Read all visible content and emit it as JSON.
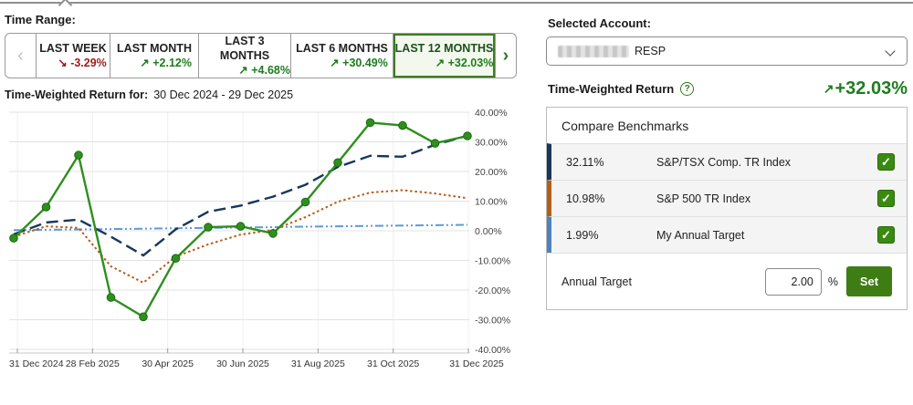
{
  "time_range": {
    "label": "Time Range:",
    "prev_icon": "‹",
    "next_icon": "›",
    "items": [
      {
        "label": "LAST WEEK",
        "arrow": "↘",
        "delta": "-3.29%",
        "trend_class": "tab-delta down",
        "selected": false
      },
      {
        "label": "LAST MONTH",
        "arrow": "↗",
        "delta": "+2.12%",
        "trend_class": "tab-delta up",
        "selected": false
      },
      {
        "label": "LAST 3 MONTHS",
        "arrow": "↗",
        "delta": "+4.68%",
        "trend_class": "tab-delta up",
        "selected": false
      },
      {
        "label": "LAST 6 MONTHS",
        "arrow": "↗",
        "delta": "+30.49%",
        "trend_class": "tab-delta up",
        "selected": false
      },
      {
        "label": "LAST 12 MONTHS",
        "arrow": "↗",
        "delta": "+32.03%",
        "trend_class": "tab-delta up",
        "selected": true
      }
    ]
  },
  "chart": {
    "title_label": "Time-Weighted Return for:",
    "title_range": "30 Dec 2024 - 29 Dec 2025"
  },
  "chart_data": {
    "type": "line",
    "title": "Time-Weighted Return for: 30 Dec 2024 - 29 Dec 2025",
    "x_tick_labels": [
      "31 Dec 2024",
      "28 Feb 2025",
      "30 Apr 2025",
      "30 Jun 2025",
      "31 Aug 2025",
      "31 Oct 2025",
      "31 Dec 2025"
    ],
    "y_tick_labels": [
      "40.00%",
      "30.00%",
      "20.00%",
      "10.00%",
      "0.00%",
      "-10.00%",
      "-20.00%",
      "-30.00%",
      "-40.00%"
    ],
    "ylim": [
      -40,
      40
    ],
    "grid": "horizontal-major, faint vertical at 2-month ticks",
    "legend_position": "none (legend lives in Compare Benchmarks panel)",
    "x_note": "15 evenly spaced observations, 31 Dec 2024 through 31 Dec 2025",
    "series": [
      {
        "name": "My Annual Target",
        "style": "dash-dot-dot",
        "marker": false,
        "color": "#5b9bd5",
        "values": [
          0.2,
          0.33,
          0.46,
          0.59,
          0.72,
          0.85,
          0.98,
          1.11,
          1.24,
          1.37,
          1.5,
          1.63,
          1.76,
          1.88,
          1.99
        ]
      },
      {
        "name": "S&P 500 TR Index",
        "style": "dotted",
        "marker": false,
        "color": "#b45f17",
        "values": [
          -2.0,
          1.5,
          1.0,
          -12.0,
          -17.5,
          -8.7,
          -4.6,
          -1.3,
          0.3,
          4.6,
          9.8,
          12.9,
          13.7,
          12.6,
          11.0
        ]
      },
      {
        "name": "S&P/TSX Comp. TR Index",
        "style": "dashed",
        "marker": false,
        "color": "#17375e",
        "values": [
          -1.2,
          2.8,
          3.8,
          -2.0,
          -8.3,
          0.5,
          6.4,
          8.5,
          11.5,
          15.5,
          21.5,
          25.3,
          25.0,
          29.0,
          32.1
        ]
      },
      {
        "name": "Account Time-Weighted Return",
        "style": "solid",
        "marker": true,
        "color": "#2e8f1e",
        "values": [
          -2.5,
          8.0,
          25.5,
          -22.5,
          -29.0,
          -9.3,
          1.2,
          1.5,
          -0.9,
          9.7,
          23.0,
          36.5,
          35.5,
          29.5,
          32.0
        ]
      }
    ]
  },
  "account": {
    "label": "Selected Account:",
    "display_suffix": "RESP"
  },
  "twr": {
    "label": "Time-Weighted Return",
    "help_glyph": "?",
    "arrow": "↗",
    "value": "+32.03%"
  },
  "benchmarks": {
    "title": "Compare Benchmarks",
    "rows": [
      {
        "value": "32.11%",
        "name": "S&P/TSX Comp. TR Index",
        "color": "#17375e",
        "checked": true,
        "check_glyph": "✓"
      },
      {
        "value": "10.98%",
        "name": "S&P 500 TR Index",
        "color": "#b45f17",
        "checked": true,
        "check_glyph": "✓"
      },
      {
        "value": "1.99%",
        "name": "My Annual Target",
        "color": "#4f81bd",
        "checked": true,
        "check_glyph": "✓"
      }
    ],
    "annual_target": {
      "label": "Annual Target",
      "input_value": "2.00",
      "unit": "%",
      "set_label": "Set"
    }
  },
  "colors": {
    "accent_green": "#1e7c1e",
    "negative_red": "#9b1c1c",
    "selected_tab_border": "#3c7d24",
    "checkbox_green": "#3a8a12",
    "set_button_green": "#3e7d14"
  }
}
